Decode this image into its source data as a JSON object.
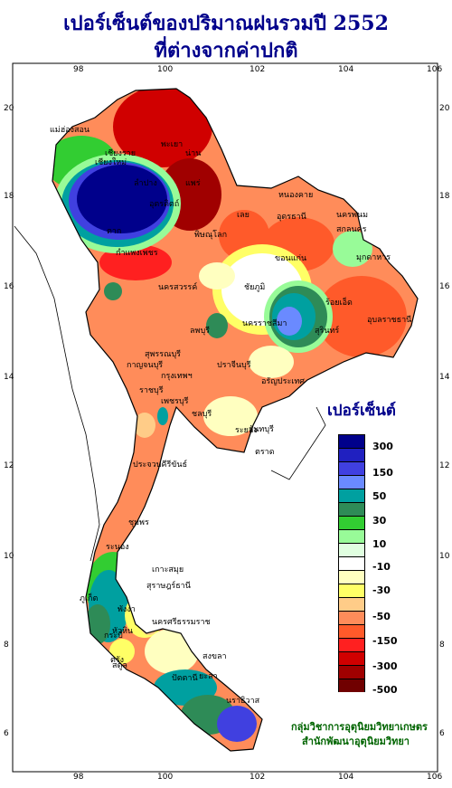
{
  "title_line1": "เปอร์เซ็นต์ของปริมาณฝนรวมปี  2552",
  "title_line2": "ที่ต่างจากค่าปกติ",
  "x_ticks": [
    "98",
    "100",
    "102",
    "104",
    "106"
  ],
  "y_ticks": [
    "20",
    "18",
    "16",
    "14",
    "12",
    "10",
    "8",
    "6"
  ],
  "legend": {
    "title": "เปอร์เซ็นต์",
    "labels": [
      "300",
      "150",
      "50",
      "30",
      "10",
      "-10",
      "-30",
      "-50",
      "-150",
      "-300",
      "-500"
    ],
    "colors": [
      "#00008b",
      "#2020c0",
      "#4040e0",
      "#6a8aff",
      "#00a0a0",
      "#2e8b57",
      "#32cd32",
      "#98fb98",
      "#e0ffe0",
      "#ffffff",
      "#ffffc0",
      "#ffff66",
      "#ffcc88",
      "#ff8c5a",
      "#ff5a2a",
      "#ff2020",
      "#d00000",
      "#a00000",
      "#700000"
    ]
  },
  "credits": [
    "กลุ่มวิชาการอุตุนิยมวิทยาเกษตร",
    "สำนักพัฒนาอุตุนิยมวิทยา"
  ],
  "places": [
    {
      "name": "เชียงราย"
    },
    {
      "name": "เชียงใหม่"
    },
    {
      "name": "แม่ฮ่องสอน"
    },
    {
      "name": "น่าน"
    },
    {
      "name": "ลำปาง"
    },
    {
      "name": "พะเยา"
    },
    {
      "name": "แพร่"
    },
    {
      "name": "อุตรดิตถ์"
    },
    {
      "name": "ตาก"
    },
    {
      "name": "กำแพงเพชร"
    },
    {
      "name": "พิษณุโลก"
    },
    {
      "name": "เลย"
    },
    {
      "name": "หนองคาย"
    },
    {
      "name": "อุดรธานี"
    },
    {
      "name": "นครพนม"
    },
    {
      "name": "สกลนคร"
    },
    {
      "name": "มุกดาหาร"
    },
    {
      "name": "ขอนแก่น"
    },
    {
      "name": "ชัยภูมิ"
    },
    {
      "name": "นครสวรรค์"
    },
    {
      "name": "นครราชสีมา"
    },
    {
      "name": "สุรินทร์"
    },
    {
      "name": "ร้อยเอ็ด"
    },
    {
      "name": "อุบลราชธานี"
    },
    {
      "name": "ลพบุรี"
    },
    {
      "name": "สุพรรณบุรี"
    },
    {
      "name": "กาญจนบุรี"
    },
    {
      "name": "กรุงเทพฯ"
    },
    {
      "name": "ราชบุรี"
    },
    {
      "name": "ปราจีนบุรี"
    },
    {
      "name": "อรัญประเทศ"
    },
    {
      "name": "เพชรบุรี"
    },
    {
      "name": "ชลบุรี"
    },
    {
      "name": "ระยอง"
    },
    {
      "name": "จันทบุรี"
    },
    {
      "name": "ประจวบคีรีขันธ์"
    },
    {
      "name": "ชุมพร"
    },
    {
      "name": "ระนอง"
    },
    {
      "name": "เกาะสมุย"
    },
    {
      "name": "สุราษฎร์ธานี"
    },
    {
      "name": "พังงา"
    },
    {
      "name": "ภูเก็ต"
    },
    {
      "name": "นครศรีธรรมราช"
    },
    {
      "name": "กระบี่"
    },
    {
      "name": "ตรัง"
    },
    {
      "name": "สงขลา"
    },
    {
      "name": "สตูล"
    },
    {
      "name": "ปัตตานี"
    },
    {
      "name": "ยะลา"
    },
    {
      "name": "นราธิวาส"
    },
    {
      "name": "หัวหิน"
    },
    {
      "name": "ตราด"
    }
  ]
}
